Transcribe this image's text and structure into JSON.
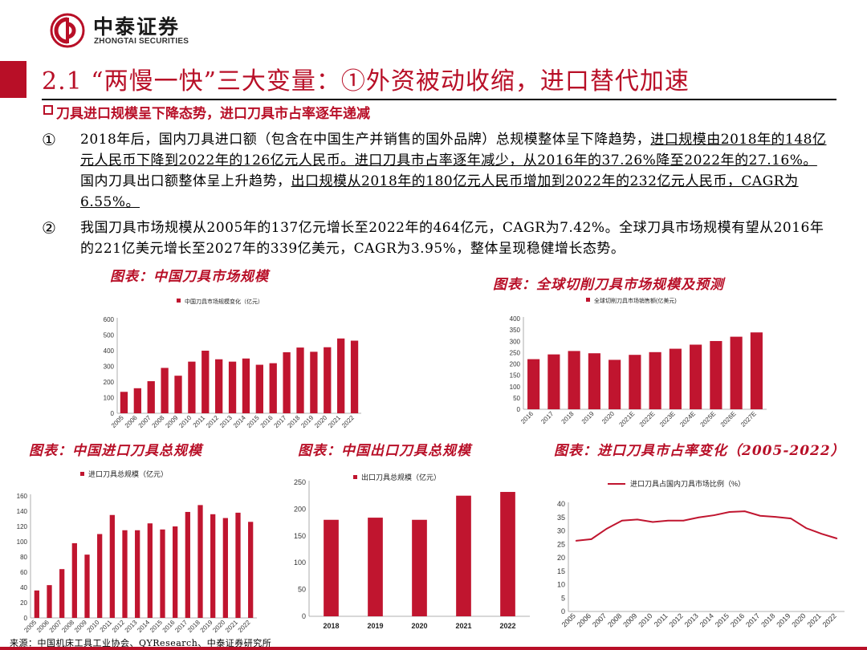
{
  "header": {
    "company_cn": "中泰证券",
    "company_en": "ZHONGTAI SECURITIES"
  },
  "title": "2.1  “两慢一快”三大变量：①外资被动收缩，进口替代加速",
  "subtitle": "刀具进口规模呈下降态势，进口刀具市占率逐年递减",
  "bullets": [
    {
      "marker": "①",
      "segments": [
        {
          "text": "2018年后，国内刀具进口额（包含在中国生产并销售的国外品牌）总规模整体呈下降趋势，",
          "u": false
        },
        {
          "text": "进口规模由2018年的148亿元人民币下降到2022年的126亿元人民币。",
          "u": true
        },
        {
          "text": "进口刀具市占率逐年减少，从2016年的37.26%降至2022年的27.16%。",
          "u": true
        },
        {
          "text": "国内刀具出口额整体呈上升趋势，",
          "u": false
        },
        {
          "text": "出口规模从2018年的180亿元人民币增加到2022年的232亿元人民币，CAGR为6.55%。",
          "u": true
        }
      ]
    },
    {
      "marker": "②",
      "segments": [
        {
          "text": "我国刀具市场规模从2005年的137亿元增长至2022年的464亿元，CAGR为7.42%。全球刀具市场规模有望从2016年的221亿美元增长至2027年的339亿美元，CAGR为3.95%，整体呈现稳健增长态势。",
          "u": false
        }
      ]
    }
  ],
  "captions": {
    "c1": "图表：中国刀具市场规模",
    "c2": "图表：全球切削刀具市场规模及预测",
    "c3": "图表：中国进口刀具总规模",
    "c4": "图表：中国出口刀具总规模",
    "c5": "图表：进口刀具市占率变化（2005-2022）"
  },
  "source": "来源：中国机床工具工业协会、QYResearch、中泰证券研究所",
  "colors": {
    "accent": "#B80F27",
    "bar": "#C0152F"
  },
  "chart_data": [
    {
      "id": "c1",
      "type": "bar",
      "legend": "中国刀具市场规模变化（亿元）",
      "legend_position": "top",
      "categories": [
        "2005",
        "2006",
        "2007",
        "2008",
        "2009",
        "2010",
        "2011",
        "2012",
        "2013",
        "2014",
        "2015",
        "2016",
        "2017",
        "2018",
        "2019",
        "2020",
        "2021",
        "2022"
      ],
      "values": [
        137,
        160,
        205,
        290,
        240,
        330,
        400,
        345,
        330,
        350,
        310,
        320,
        390,
        420,
        393,
        422,
        478,
        464
      ],
      "ylim": [
        0,
        600
      ],
      "yticks": [
        0,
        100,
        200,
        300,
        400,
        500,
        600
      ],
      "rotate_x": true
    },
    {
      "id": "c2",
      "type": "bar",
      "legend": "全球切削刀具市场销售额(亿美元)",
      "legend_position": "top-left",
      "categories": [
        "2016",
        "2017",
        "2018",
        "2019",
        "2020",
        "2021E",
        "2022E",
        "2023E",
        "2024E",
        "2025E",
        "2026E",
        "2027E"
      ],
      "values": [
        221,
        242,
        257,
        247,
        218,
        240,
        252,
        267,
        285,
        301,
        320,
        339
      ],
      "ylim": [
        0,
        400
      ],
      "yticks": [
        0,
        50,
        100,
        150,
        200,
        250,
        300,
        350,
        400
      ],
      "rotate_x": true
    },
    {
      "id": "c3",
      "type": "bar",
      "legend": "进口刀具总规模（亿元）",
      "legend_position": "top",
      "categories": [
        "2005",
        "2006",
        "2007",
        "2008",
        "2009",
        "2010",
        "2011",
        "2012",
        "2013",
        "2014",
        "2015",
        "2016",
        "2017",
        "2018",
        "2019",
        "2020",
        "2021",
        "2022"
      ],
      "values": [
        36,
        43,
        64,
        98,
        83,
        110,
        135,
        115,
        115,
        124,
        116,
        120,
        139,
        148,
        136,
        131,
        138,
        126
      ],
      "ylim": [
        0,
        160
      ],
      "yticks": [
        0,
        20,
        40,
        60,
        80,
        100,
        120,
        140,
        160
      ],
      "rotate_x": true
    },
    {
      "id": "c4",
      "type": "bar",
      "legend": "出口刀具总规模（亿元）",
      "legend_position": "top",
      "categories": [
        "2018",
        "2019",
        "2020",
        "2021",
        "2022"
      ],
      "values": [
        180,
        184,
        180,
        225,
        232
      ],
      "ylim": [
        0,
        250
      ],
      "yticks": [
        0,
        50,
        100,
        150,
        200,
        250
      ],
      "rotate_x": false
    },
    {
      "id": "c5",
      "type": "line",
      "legend": "进口刀具占国内刀具市场比例（%）",
      "legend_position": "top",
      "categories": [
        "2005",
        "2006",
        "2007",
        "2008",
        "2009",
        "2010",
        "2011",
        "2012",
        "2013",
        "2014",
        "2015",
        "2016",
        "2017",
        "2018",
        "2019",
        "2020",
        "2021",
        "2022"
      ],
      "values": [
        26.3,
        26.9,
        30.8,
        33.8,
        34.2,
        33.3,
        33.8,
        33.8,
        35.0,
        35.8,
        37.0,
        37.26,
        35.6,
        35.2,
        34.6,
        31.0,
        28.9,
        27.16
      ],
      "ylim": [
        0,
        40
      ],
      "yticks": [
        0,
        5,
        10,
        15,
        20,
        25,
        30,
        35,
        40
      ],
      "rotate_x": true
    }
  ]
}
